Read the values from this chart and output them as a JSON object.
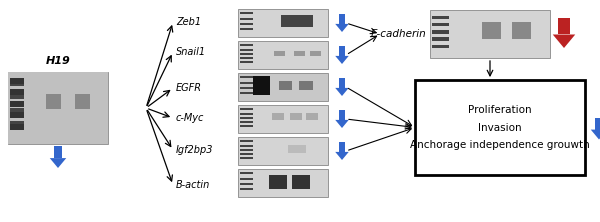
{
  "background_color": "#ffffff",
  "h19_label": "H19",
  "gene_labels": [
    "Zeb1",
    "Snail1",
    "EGFR",
    "c-Myc",
    "Igf2bp3",
    "B-actin"
  ],
  "ecadherin_label": "E-cadherin",
  "box_text": "Proliferation\nInvasion\nAnchorage independence grouwth",
  "blue_color": "#3366cc",
  "red_color": "#bb2222",
  "black": "#000000",
  "gray_blot_bg": "#cccccc",
  "dark_band": "#222222",
  "mid_band": "#666666",
  "light_band": "#aaaaaa",
  "ladder_band": "#444444"
}
